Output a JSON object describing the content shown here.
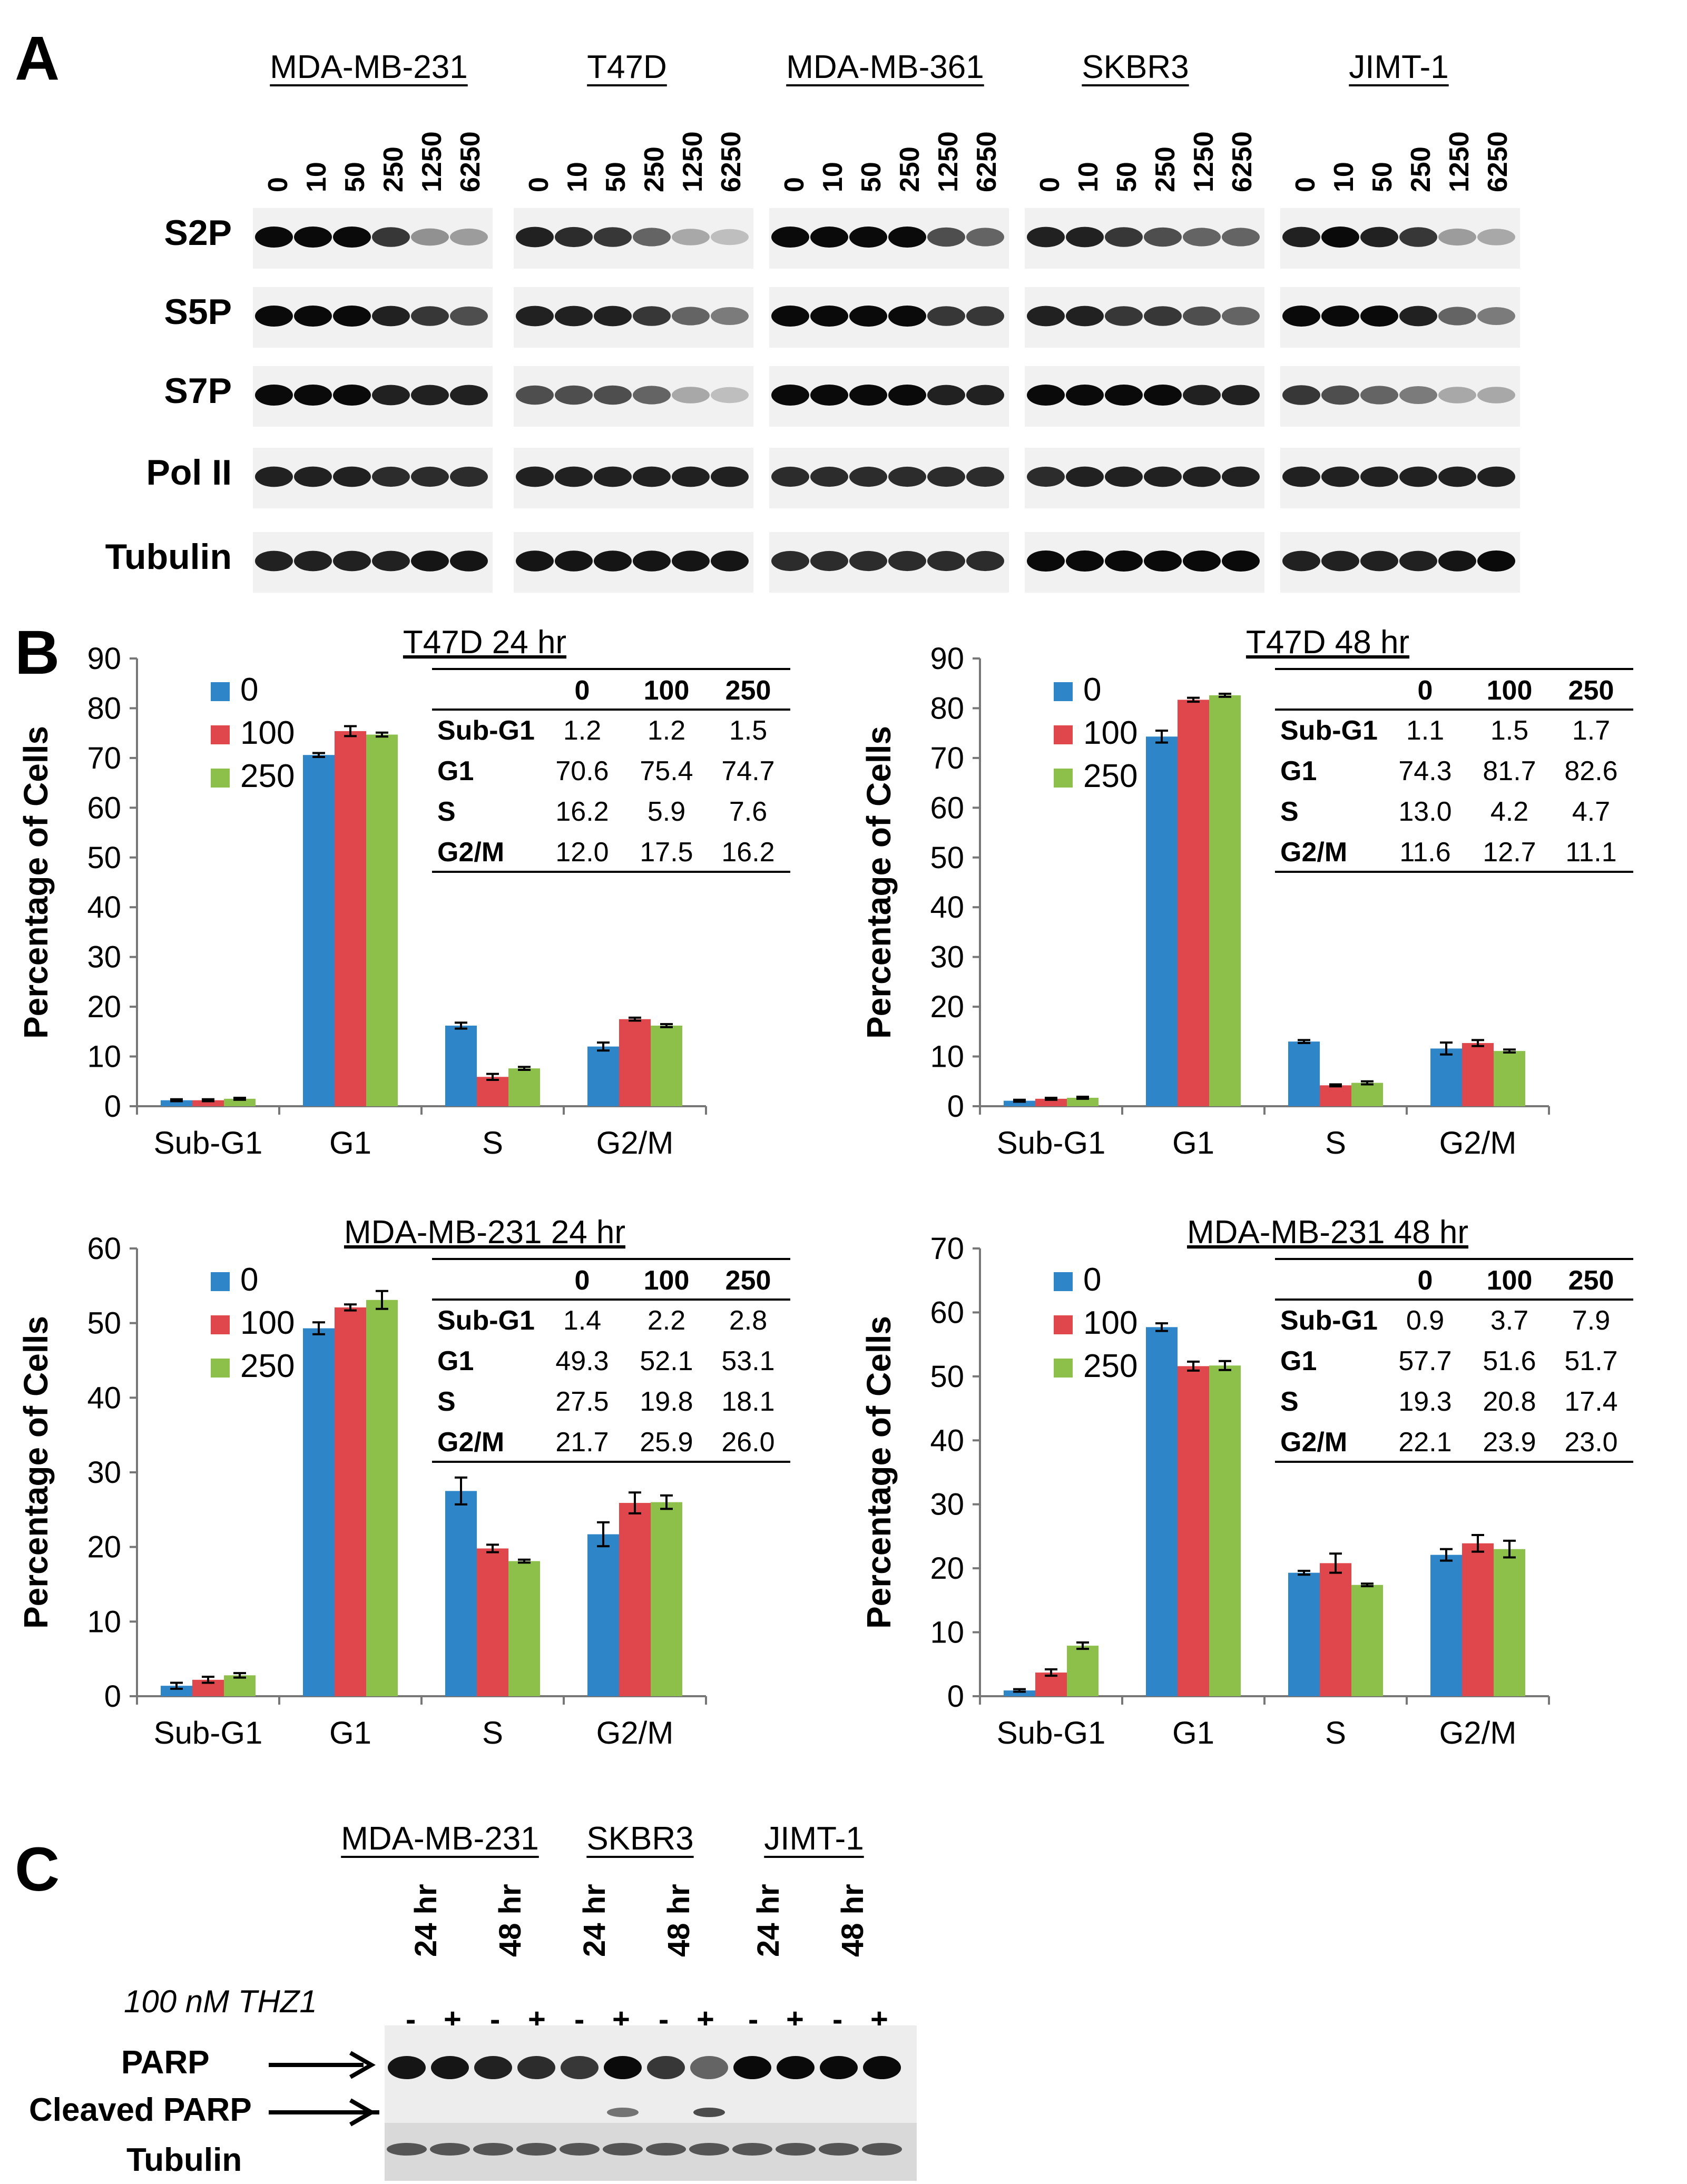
{
  "panel_a": {
    "letter": "A",
    "cell_lines": [
      "MDA-MB-231",
      "T47D",
      "MDA-MB-361",
      "SKBR3",
      "JIMT-1"
    ],
    "concentrations": [
      "0",
      "10",
      "50",
      "250",
      "1250",
      "6250"
    ],
    "rows": [
      "S2P",
      "S5P",
      "S7P",
      "Pol II",
      "Tubulin"
    ]
  },
  "panel_b": {
    "letter": "B"
  },
  "panel_c": {
    "letter": "C",
    "cell_lines": [
      "MDA-MB-231",
      "SKBR3",
      "JIMT-1"
    ],
    "timepoints": [
      "24 hr",
      "48 hr",
      "24 hr",
      "48 hr",
      "24 hr",
      "48 hr"
    ],
    "treatment_label": "100 nM THZ1",
    "signs": [
      "-",
      "+",
      "-",
      "+",
      "-",
      "+",
      "-",
      "+",
      "-",
      "+",
      "-",
      "+"
    ],
    "labels": [
      "PARP",
      "Cleaved PARP",
      "Tubulin"
    ]
  },
  "chart_data": [
    {
      "type": "bar",
      "title": "T47D 24 hr",
      "ylabel": "Percentage of Cells",
      "ylim": [
        0,
        90
      ],
      "yticks": [
        0,
        10,
        20,
        30,
        40,
        50,
        60,
        70,
        80,
        90
      ],
      "categories": [
        "Sub-G1",
        "G1",
        "S",
        "G2/M"
      ],
      "series": [
        {
          "name": "0",
          "color": "#2e86c8",
          "values": [
            1.2,
            70.6,
            16.2,
            12.0
          ],
          "errors": [
            0.2,
            0.4,
            0.6,
            0.8
          ]
        },
        {
          "name": "100",
          "color": "#e0474c",
          "values": [
            1.2,
            75.4,
            5.9,
            17.5
          ],
          "errors": [
            0.2,
            1.0,
            0.6,
            0.3
          ]
        },
        {
          "name": "250",
          "color": "#8cc04b",
          "values": [
            1.5,
            74.7,
            7.6,
            16.2
          ],
          "errors": [
            0.2,
            0.4,
            0.3,
            0.3
          ]
        }
      ],
      "table": {
        "headers": [
          "",
          "0",
          "100",
          "250"
        ],
        "rows": [
          [
            "Sub-G1",
            "1.2",
            "1.2",
            "1.5"
          ],
          [
            "G1",
            "70.6",
            "75.4",
            "74.7"
          ],
          [
            "S",
            "16.2",
            "5.9",
            "7.6"
          ],
          [
            "G2/M",
            "12.0",
            "17.5",
            "16.2"
          ]
        ]
      }
    },
    {
      "type": "bar",
      "title": "T47D 48 hr",
      "ylabel": "Percentage of Cells",
      "ylim": [
        0,
        90
      ],
      "yticks": [
        0,
        10,
        20,
        30,
        40,
        50,
        60,
        70,
        80,
        90
      ],
      "categories": [
        "Sub-G1",
        "G1",
        "S",
        "G2/M"
      ],
      "series": [
        {
          "name": "0",
          "color": "#2e86c8",
          "values": [
            1.1,
            74.3,
            13.0,
            11.6
          ],
          "errors": [
            0.2,
            1.2,
            0.3,
            1.2
          ]
        },
        {
          "name": "100",
          "color": "#e0474c",
          "values": [
            1.5,
            81.7,
            4.2,
            12.7
          ],
          "errors": [
            0.2,
            0.4,
            0.2,
            0.6
          ]
        },
        {
          "name": "250",
          "color": "#8cc04b",
          "values": [
            1.7,
            82.6,
            4.7,
            11.1
          ],
          "errors": [
            0.2,
            0.3,
            0.3,
            0.3
          ]
        }
      ],
      "table": {
        "headers": [
          "",
          "0",
          "100",
          "250"
        ],
        "rows": [
          [
            "Sub-G1",
            "1.1",
            "1.5",
            "1.7"
          ],
          [
            "G1",
            "74.3",
            "81.7",
            "82.6"
          ],
          [
            "S",
            "13.0",
            "4.2",
            "4.7"
          ],
          [
            "G2/M",
            "11.6",
            "12.7",
            "11.1"
          ]
        ]
      }
    },
    {
      "type": "bar",
      "title": "MDA-MB-231 24 hr",
      "ylabel": "Percentage of Cells",
      "ylim": [
        0,
        60
      ],
      "yticks": [
        0,
        10,
        20,
        30,
        40,
        50,
        60
      ],
      "categories": [
        "Sub-G1",
        "G1",
        "S",
        "G2/M"
      ],
      "series": [
        {
          "name": "0",
          "color": "#2e86c8",
          "values": [
            1.4,
            49.3,
            27.5,
            21.7
          ],
          "errors": [
            0.4,
            0.8,
            1.8,
            1.6
          ]
        },
        {
          "name": "100",
          "color": "#e0474c",
          "values": [
            2.2,
            52.1,
            19.8,
            25.9
          ],
          "errors": [
            0.4,
            0.4,
            0.5,
            1.4
          ]
        },
        {
          "name": "250",
          "color": "#8cc04b",
          "values": [
            2.8,
            53.1,
            18.1,
            26.0
          ],
          "errors": [
            0.3,
            1.2,
            0.2,
            0.9
          ]
        }
      ],
      "table": {
        "headers": [
          "",
          "0",
          "100",
          "250"
        ],
        "rows": [
          [
            "Sub-G1",
            "1.4",
            "2.2",
            "2.8"
          ],
          [
            "G1",
            "49.3",
            "52.1",
            "53.1"
          ],
          [
            "S",
            "27.5",
            "19.8",
            "18.1"
          ],
          [
            "G2/M",
            "21.7",
            "25.9",
            "26.0"
          ]
        ]
      }
    },
    {
      "type": "bar",
      "title": "MDA-MB-231 48 hr",
      "ylabel": "Percentage of Cells",
      "ylim": [
        0,
        70
      ],
      "yticks": [
        0,
        10,
        20,
        30,
        40,
        50,
        60,
        70
      ],
      "categories": [
        "Sub-G1",
        "G1",
        "S",
        "G2/M"
      ],
      "series": [
        {
          "name": "0",
          "color": "#2e86c8",
          "values": [
            0.9,
            57.7,
            19.3,
            22.1
          ],
          "errors": [
            0.2,
            0.6,
            0.3,
            0.9
          ]
        },
        {
          "name": "100",
          "color": "#e0474c",
          "values": [
            3.7,
            51.6,
            20.8,
            23.9
          ],
          "errors": [
            0.5,
            0.7,
            1.5,
            1.3
          ]
        },
        {
          "name": "250",
          "color": "#8cc04b",
          "values": [
            7.9,
            51.7,
            17.4,
            23.0
          ],
          "errors": [
            0.5,
            0.7,
            0.2,
            1.3
          ]
        }
      ],
      "table": {
        "headers": [
          "",
          "0",
          "100",
          "250"
        ],
        "rows": [
          [
            "Sub-G1",
            "0.9",
            "3.7",
            "7.9"
          ],
          [
            "G1",
            "57.7",
            "51.6",
            "51.7"
          ],
          [
            "S",
            "19.3",
            "20.8",
            "17.4"
          ],
          [
            "G2/M",
            "22.1",
            "23.9",
            "23.0"
          ]
        ]
      }
    }
  ]
}
